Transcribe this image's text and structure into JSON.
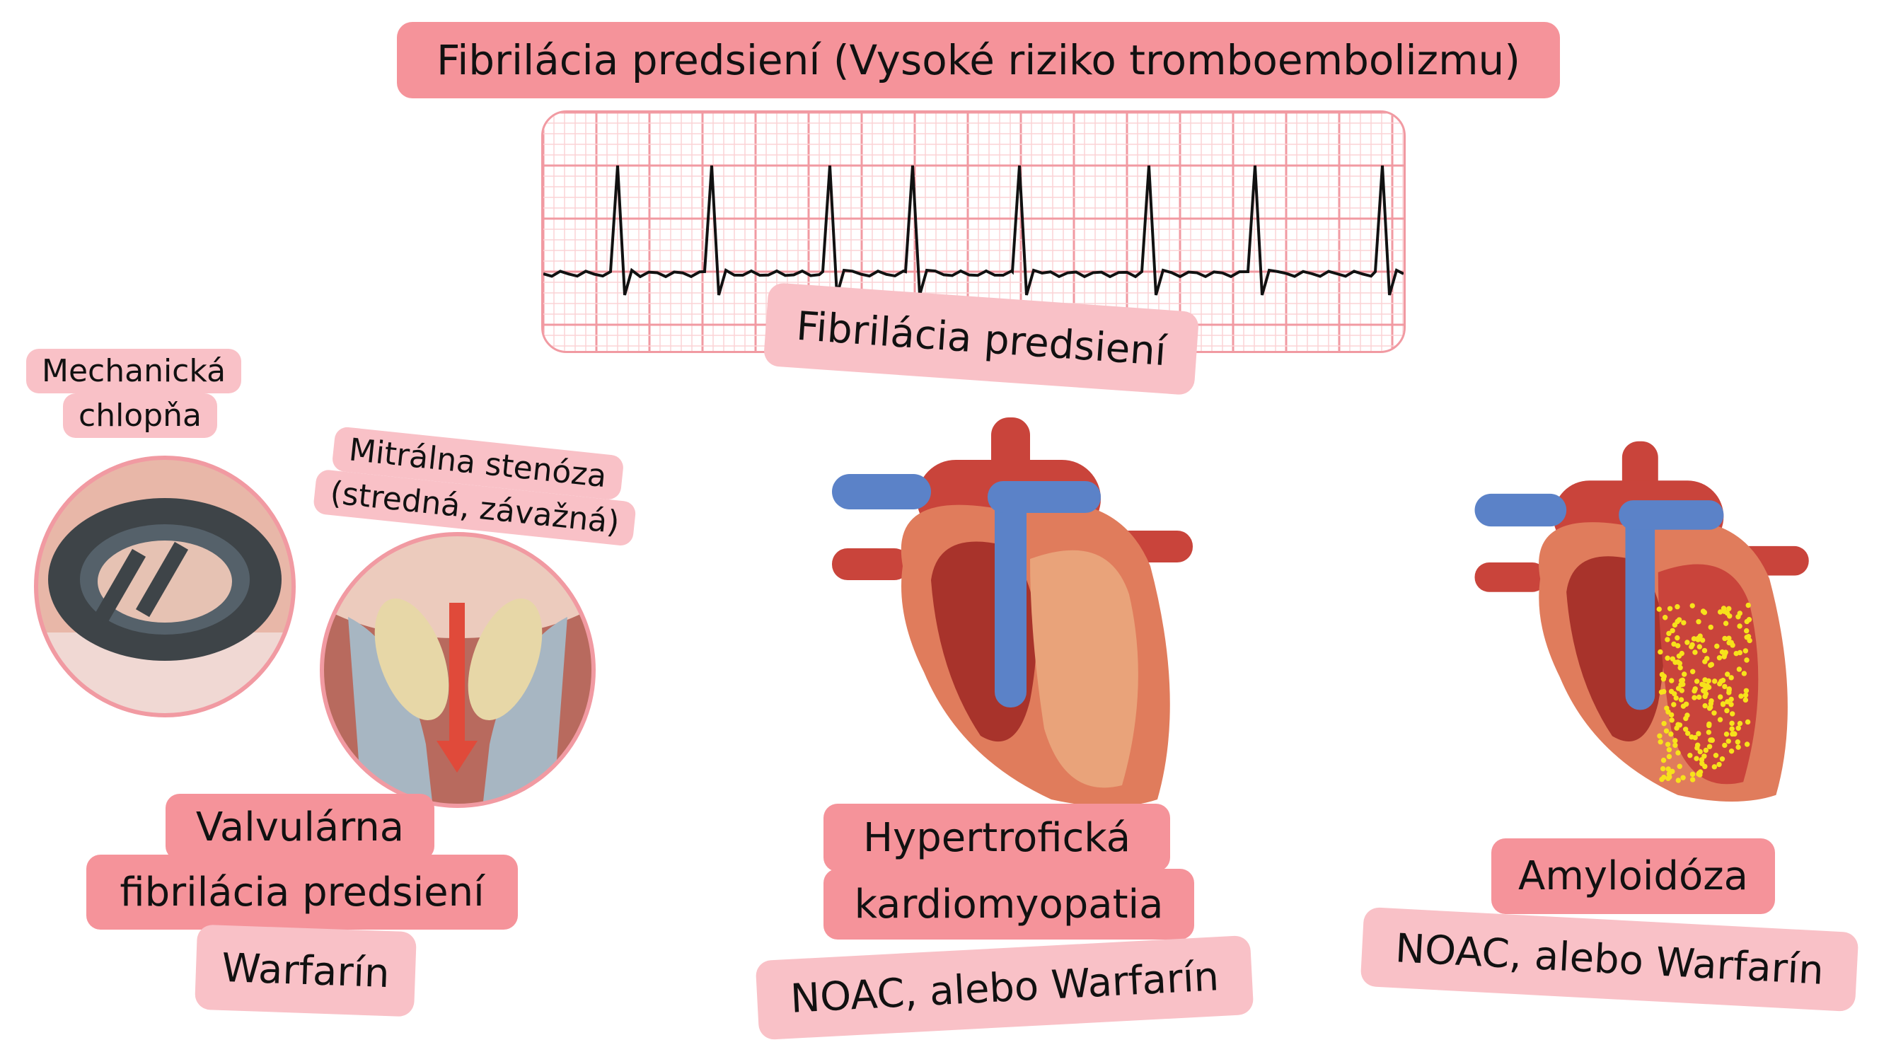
{
  "title": "Fibrilácia predsiení (Vysoké riziko tromboembolizmu)",
  "ecg_label": "Fibrilácia predsiení",
  "left": {
    "mechanical_valve_label": [
      "Mechanická",
      "chlopňa"
    ],
    "mitral_stenosis_label": [
      "Mitrálna stenóza",
      "(stredná, závažná)"
    ],
    "condition": [
      "Valvulárna",
      "fibrilácia predsiení"
    ],
    "treatment": "Warfarín"
  },
  "middle": {
    "condition": [
      "Hypertrofická",
      "kardiomyopatia"
    ],
    "treatment": "NOAC, alebo Warfarín"
  },
  "right": {
    "condition": "Amyloidóza",
    "treatment": "NOAC, alebo Warfarín"
  },
  "colors": {
    "label_dark": "#f5939a",
    "label_light": "#f9c1c7",
    "ecg_grid": "#f4a3aa",
    "heart_red": "#c9443b",
    "heart_vein_blue": "#5b82c8",
    "amyloid_yellow": "#f7e21b"
  }
}
